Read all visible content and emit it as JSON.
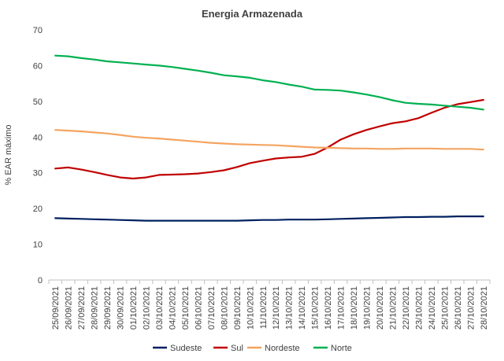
{
  "chart_data": {
    "type": "line",
    "title": "Energia Armazenada",
    "xlabel": "",
    "ylabel": "% EAR máximo",
    "ylim": [
      0,
      70
    ],
    "yticks": [
      0,
      10,
      20,
      30,
      40,
      50,
      60,
      70
    ],
    "grid": false,
    "legend": "bottom",
    "categories": [
      "25/09/2021",
      "26/09/2021",
      "27/09/2021",
      "28/09/2021",
      "29/09/2021",
      "30/09/2021",
      "01/10/2021",
      "02/10/2021",
      "03/10/2021",
      "04/10/2021",
      "05/10/2021",
      "06/10/2021",
      "07/10/2021",
      "08/10/2021",
      "09/10/2021",
      "10/10/2021",
      "11/10/2021",
      "12/10/2021",
      "13/10/2021",
      "14/10/2021",
      "15/10/2021",
      "16/10/2021",
      "17/10/2021",
      "18/10/2021",
      "19/10/2021",
      "20/10/2021",
      "21/10/2021",
      "22/10/2021",
      "23/10/2021",
      "24/10/2021",
      "25/10/2021",
      "26/10/2021",
      "27/10/2021",
      "28/10/2021"
    ],
    "series": [
      {
        "name": "Sudeste",
        "color": "#002060",
        "values": [
          17.3,
          17.2,
          17.1,
          17.0,
          16.9,
          16.8,
          16.7,
          16.6,
          16.6,
          16.6,
          16.6,
          16.6,
          16.6,
          16.6,
          16.6,
          16.7,
          16.8,
          16.8,
          16.9,
          16.9,
          16.9,
          17.0,
          17.1,
          17.2,
          17.3,
          17.4,
          17.5,
          17.6,
          17.6,
          17.7,
          17.7,
          17.8,
          17.8,
          17.8
        ]
      },
      {
        "name": "Sul",
        "color": "#C00000",
        "values": [
          31.2,
          31.5,
          30.9,
          30.2,
          29.4,
          28.7,
          28.4,
          28.7,
          29.4,
          29.5,
          29.6,
          29.8,
          30.2,
          30.7,
          31.6,
          32.7,
          33.4,
          34.0,
          34.3,
          34.5,
          35.3,
          37.1,
          39.3,
          40.8,
          42.0,
          43.0,
          43.9,
          44.4,
          45.3,
          46.8,
          48.2,
          49.2,
          49.8,
          50.4
        ]
      },
      {
        "name": "Nordeste",
        "color": "#F4A460",
        "values": [
          42.0,
          41.8,
          41.6,
          41.3,
          41.0,
          40.6,
          40.1,
          39.8,
          39.6,
          39.3,
          39.0,
          38.7,
          38.4,
          38.2,
          38.0,
          37.9,
          37.8,
          37.7,
          37.5,
          37.3,
          37.1,
          37.0,
          36.9,
          36.8,
          36.8,
          36.7,
          36.7,
          36.8,
          36.8,
          36.8,
          36.7,
          36.7,
          36.7,
          36.5
        ]
      },
      {
        "name": "Norte",
        "color": "#00B050",
        "values": [
          62.8,
          62.6,
          62.1,
          61.7,
          61.2,
          60.9,
          60.6,
          60.3,
          60.0,
          59.6,
          59.1,
          58.6,
          58.0,
          57.3,
          57.0,
          56.6,
          55.9,
          55.4,
          54.7,
          54.1,
          53.3,
          53.2,
          53.0,
          52.5,
          51.9,
          51.2,
          50.3,
          49.6,
          49.3,
          49.1,
          48.8,
          48.5,
          48.2,
          47.7
        ]
      }
    ]
  }
}
